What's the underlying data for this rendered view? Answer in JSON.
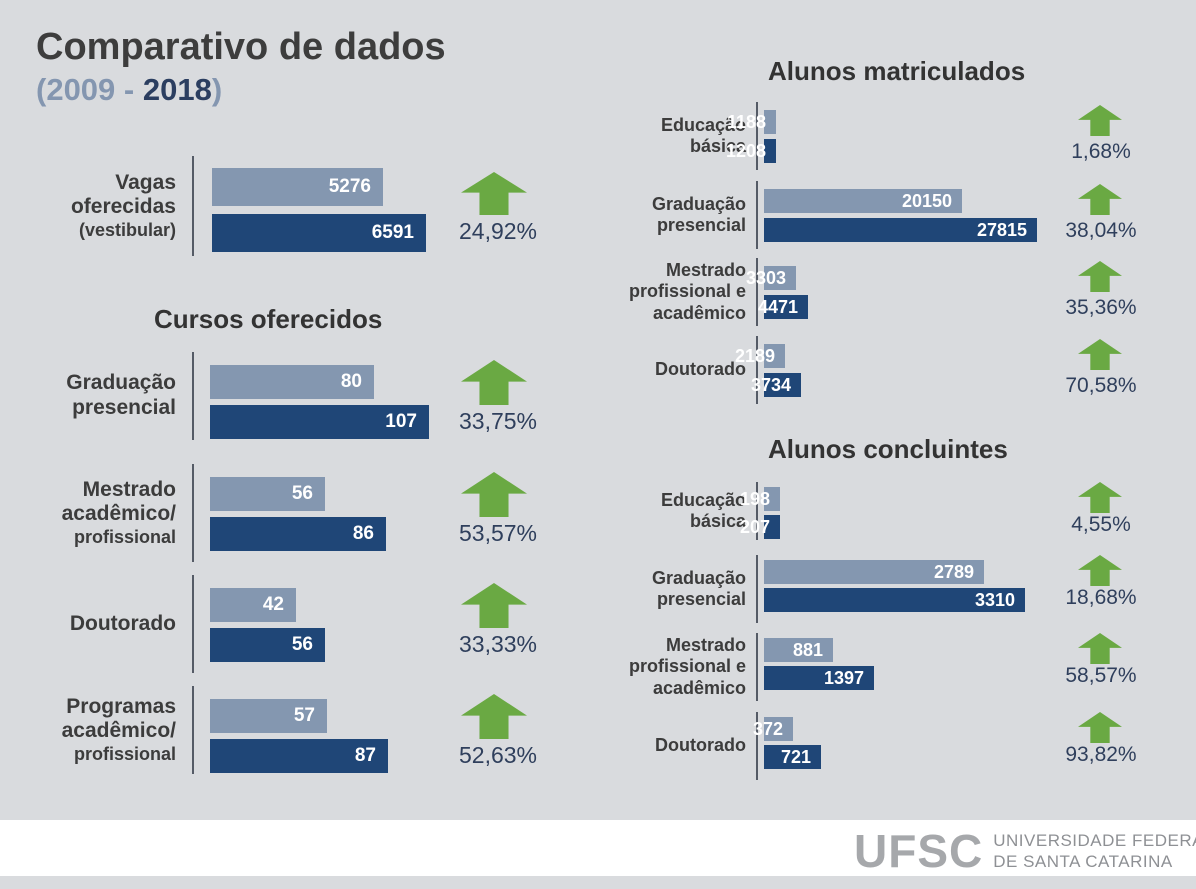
{
  "header": {
    "title": "Comparativo de dados",
    "year_open": "(",
    "year_start": "2009",
    "year_sep": " - ",
    "year_end": "2018",
    "year_close": ")"
  },
  "colors": {
    "bar_2009": "#8497b0",
    "bar_2018": "#1f4677",
    "arrow": "#6aa943",
    "background": "#d9dbde"
  },
  "chart_data": [
    {
      "type": "bar",
      "title": "",
      "categories": [
        [
          "Vagas",
          "oferecidas",
          "(vestibular)"
        ]
      ],
      "series": [
        {
          "name": "2009",
          "values": [
            5276
          ]
        },
        {
          "name": "2018",
          "values": [
            6591
          ]
        }
      ],
      "changes": [
        "24,92%"
      ],
      "xlim": [
        0,
        6591
      ]
    },
    {
      "type": "bar",
      "title": "Cursos oferecidos",
      "categories": [
        [
          "Graduação",
          "presencial"
        ],
        [
          "Mestrado",
          "acadêmico/",
          "profissional"
        ],
        [
          "Doutorado"
        ],
        [
          "Programas",
          "acadêmico/",
          "profissional"
        ]
      ],
      "series": [
        {
          "name": "2009",
          "values": [
            80,
            56,
            42,
            57
          ]
        },
        {
          "name": "2018",
          "values": [
            107,
            86,
            56,
            87
          ]
        }
      ],
      "changes": [
        "33,75%",
        "53,57%",
        "33,33%",
        "52,63%"
      ],
      "xlim": [
        0,
        107
      ]
    },
    {
      "type": "bar",
      "title": "Alunos matriculados",
      "categories": [
        [
          "Educação",
          "básica"
        ],
        [
          "Graduação",
          "presencial"
        ],
        [
          "Mestrado",
          "profissional e",
          "acadêmico"
        ],
        [
          "Doutorado"
        ]
      ],
      "series": [
        {
          "name": "2009",
          "values": [
            1188,
            20150,
            3303,
            2189
          ]
        },
        {
          "name": "2018",
          "values": [
            1208,
            27815,
            4471,
            3734
          ]
        }
      ],
      "changes": [
        "1,68%",
        "38,04%",
        "35,36%",
        "70,58%"
      ],
      "xlim": [
        0,
        27815
      ]
    },
    {
      "type": "bar",
      "title": "Alunos concluintes",
      "categories": [
        [
          "Educação",
          "básica"
        ],
        [
          "Graduação",
          "presencial"
        ],
        [
          "Mestrado",
          "profissional e",
          "acadêmico"
        ],
        [
          "Doutorado"
        ]
      ],
      "series": [
        {
          "name": "2009",
          "values": [
            198,
            2789,
            881,
            372
          ]
        },
        {
          "name": "2018",
          "values": [
            207,
            3310,
            1397,
            721
          ]
        }
      ],
      "changes": [
        "4,55%",
        "18,68%",
        "58,57%",
        "93,82%"
      ],
      "xlim": [
        0,
        3310
      ]
    }
  ],
  "logo": {
    "word": "UFSC",
    "line1": "UNIVERSIDADE FEDERAL",
    "line2": "DE SANTA CATARINA"
  }
}
